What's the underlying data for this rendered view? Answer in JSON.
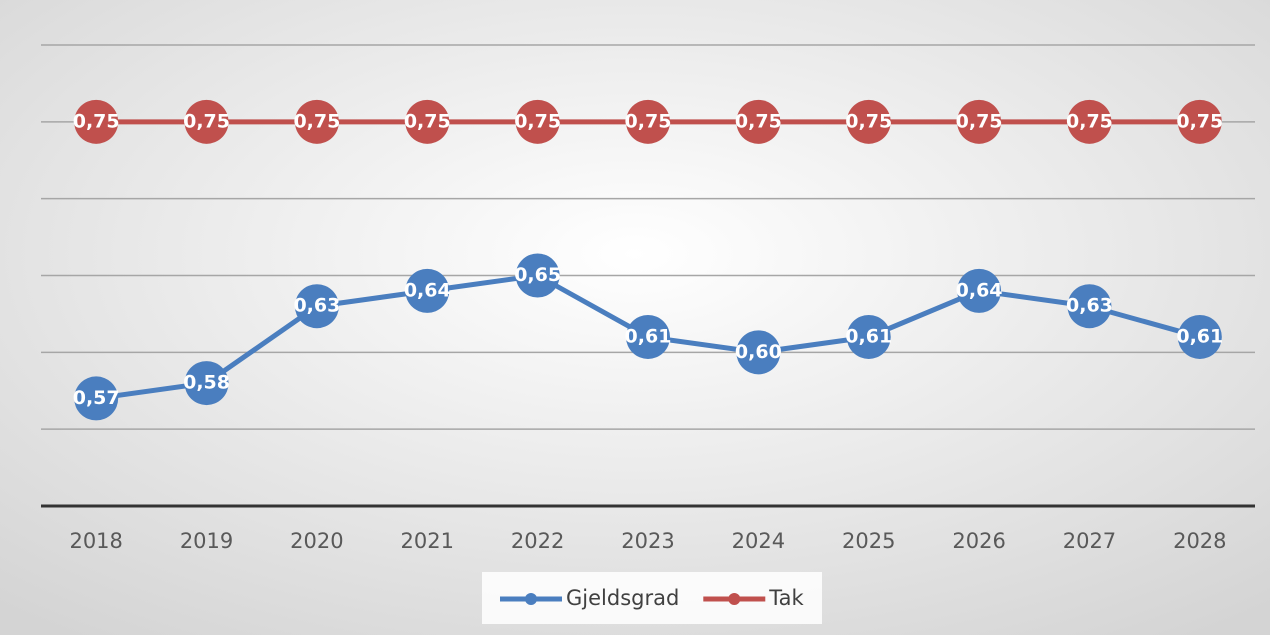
{
  "chart_data": {
    "type": "line",
    "categories": [
      "2018",
      "2019",
      "2020",
      "2021",
      "2022",
      "2023",
      "2024",
      "2025",
      "2026",
      "2027",
      "2028"
    ],
    "series": [
      {
        "name": "Gjeldsgrad",
        "color": "#4a7ebf",
        "values": [
          0.57,
          0.58,
          0.63,
          0.64,
          0.65,
          0.61,
          0.6,
          0.61,
          0.64,
          0.63,
          0.61
        ],
        "value_labels": [
          "0,57",
          "0,58",
          "0,63",
          "0,64",
          "0,65",
          "0,61",
          "0,60",
          "0,61",
          "0,64",
          "0,63",
          "0,61"
        ]
      },
      {
        "name": "Tak",
        "color": "#c0504d",
        "values": [
          0.75,
          0.75,
          0.75,
          0.75,
          0.75,
          0.75,
          0.75,
          0.75,
          0.75,
          0.75,
          0.75
        ],
        "value_labels": [
          "0,75",
          "0,75",
          "0,75",
          "0,75",
          "0,75",
          "0,75",
          "0,75",
          "0,75",
          "0,75",
          "0,75",
          "0,75"
        ]
      }
    ],
    "ylim": [
      0.5,
      0.8
    ],
    "yticks": [
      0.5,
      0.55,
      0.6,
      0.65,
      0.7,
      0.75,
      0.8
    ],
    "grid": true,
    "legend": "bottom"
  }
}
